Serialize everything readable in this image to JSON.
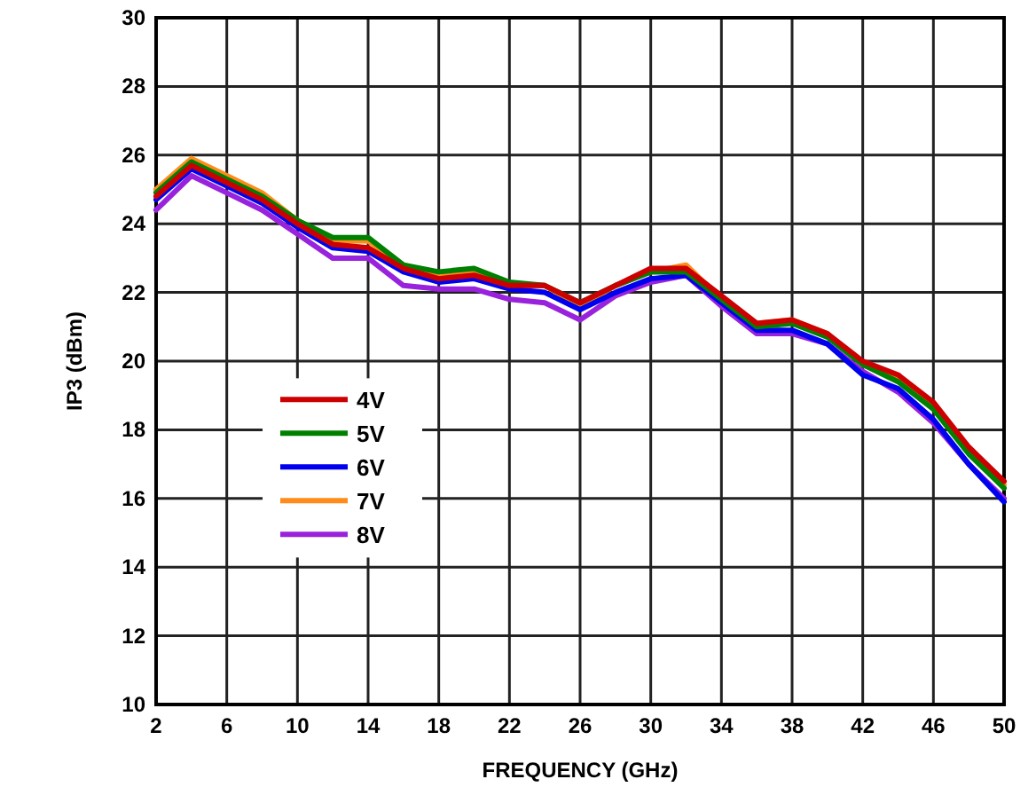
{
  "chart_data": {
    "type": "line",
    "xlabel": "FREQUENCY (GHz)",
    "ylabel": "IP3 (dBm)",
    "x": [
      2,
      4,
      6,
      8,
      10,
      12,
      14,
      16,
      18,
      20,
      22,
      24,
      26,
      28,
      30,
      32,
      34,
      36,
      38,
      40,
      42,
      44,
      46,
      48,
      50
    ],
    "xlim": [
      2,
      50
    ],
    "xticks": [
      2,
      6,
      10,
      14,
      18,
      22,
      26,
      30,
      34,
      38,
      42,
      46,
      50
    ],
    "ylim": [
      10,
      30
    ],
    "yticks": [
      10,
      12,
      14,
      16,
      18,
      20,
      22,
      24,
      26,
      28,
      30
    ],
    "grid": true,
    "legend": "bottom left",
    "marker": "none",
    "line_style": "solid",
    "series": [
      {
        "name": "4V",
        "color": "#cc0000",
        "values": [
          24.8,
          25.7,
          25.2,
          24.7,
          24.0,
          23.4,
          23.3,
          22.7,
          22.4,
          22.5,
          22.2,
          22.2,
          21.7,
          22.2,
          22.7,
          22.7,
          21.9,
          21.1,
          21.2,
          20.8,
          20.0,
          19.6,
          18.8,
          17.5,
          16.5
        ]
      },
      {
        "name": "5V",
        "color": "#008000",
        "values": [
          24.9,
          25.8,
          25.3,
          24.8,
          24.1,
          23.6,
          23.6,
          22.8,
          22.6,
          22.7,
          22.3,
          22.2,
          21.7,
          22.2,
          22.6,
          22.6,
          21.8,
          21.0,
          21.1,
          20.7,
          19.9,
          19.4,
          18.6,
          17.3,
          16.3
        ]
      },
      {
        "name": "6V",
        "color": "#0000ee",
        "values": [
          24.7,
          25.6,
          25.1,
          24.6,
          23.9,
          23.3,
          23.2,
          22.6,
          22.3,
          22.4,
          22.1,
          22.0,
          21.5,
          22.0,
          22.4,
          22.5,
          21.7,
          20.9,
          20.9,
          20.5,
          19.6,
          19.2,
          18.3,
          17.0,
          15.9
        ]
      },
      {
        "name": "7V",
        "color": "#ff8c1a",
        "values": [
          25.0,
          25.9,
          25.4,
          24.9,
          24.1,
          23.5,
          23.5,
          22.8,
          22.5,
          22.6,
          22.2,
          22.2,
          21.6,
          22.2,
          22.6,
          22.8,
          21.8,
          21.1,
          21.2,
          20.8,
          19.9,
          19.5,
          18.7,
          17.4,
          16.4
        ]
      },
      {
        "name": "8V",
        "color": "#9922dd",
        "values": [
          24.4,
          25.4,
          24.9,
          24.4,
          23.7,
          23.0,
          23.0,
          22.2,
          22.1,
          22.1,
          21.8,
          21.7,
          21.2,
          21.9,
          22.3,
          22.5,
          21.6,
          20.8,
          20.8,
          20.5,
          19.7,
          19.1,
          18.2,
          17.0,
          16.0
        ]
      }
    ]
  }
}
